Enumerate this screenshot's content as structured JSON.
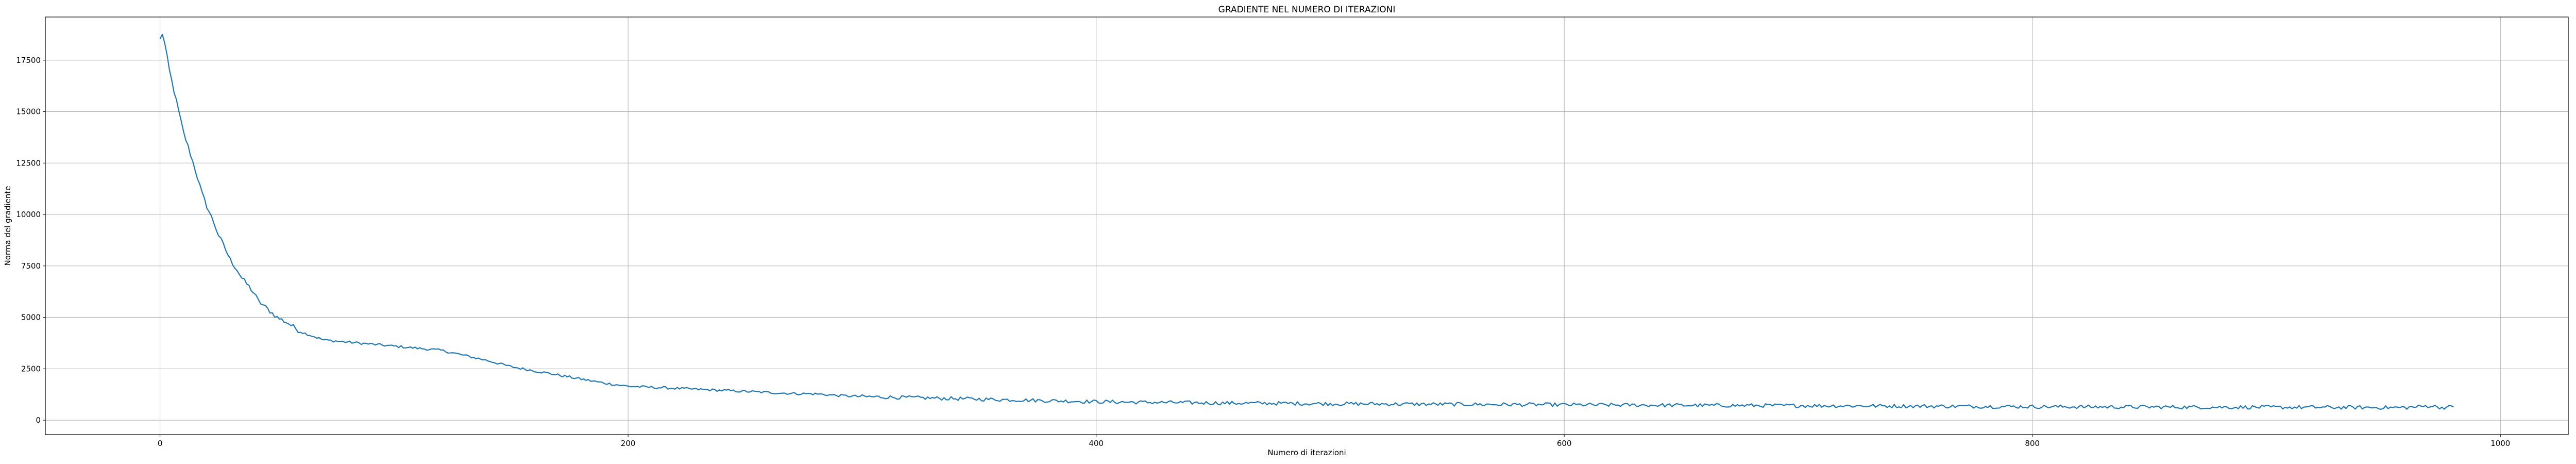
{
  "chart_data": {
    "type": "line",
    "title": "GRADIENTE NEL NUMERO DI ITERAZIONI",
    "xlabel": "Numero di iterazioni",
    "ylabel": "Norma del gradiente",
    "xlim": [
      -49,
      1029
    ],
    "ylim": [
      -700,
      19600
    ],
    "xticks": [
      0,
      200,
      400,
      600,
      800,
      1000
    ],
    "yticks": [
      0,
      2500,
      5000,
      7500,
      10000,
      12500,
      15000,
      17500
    ],
    "xtick_labels": [
      "0",
      "200",
      "400",
      "600",
      "800",
      "1000"
    ],
    "ytick_labels": [
      "0",
      "2500",
      "5000",
      "7500",
      "10000",
      "12500",
      "15000",
      "17500"
    ],
    "grid": true,
    "colors": {
      "line": "#1f77b4",
      "grid": "#b0b0b0",
      "axes": "#000000"
    },
    "series": [
      {
        "x": [
          0,
          1,
          2,
          4,
          6,
          8,
          10,
          12,
          15,
          18,
          20,
          23,
          25,
          28,
          30,
          33,
          35,
          38,
          40,
          42,
          45,
          48,
          50,
          55,
          60,
          65,
          70,
          75,
          80,
          85,
          90,
          95,
          100,
          110,
          120,
          130,
          140,
          150,
          160,
          170,
          180,
          190,
          200,
          210,
          220,
          230,
          240,
          250,
          260,
          270,
          280,
          290,
          300,
          320,
          340,
          360,
          380,
          400,
          420,
          440,
          460,
          480,
          500,
          520,
          540,
          560,
          580,
          600,
          620,
          640,
          660,
          680,
          700,
          720,
          740,
          760,
          780,
          800,
          820,
          840,
          860,
          880,
          900,
          920,
          940,
          960,
          970,
          975,
          980
        ],
        "y": [
          18500,
          18800,
          18300,
          17000,
          16000,
          15000,
          14000,
          13300,
          12200,
          11000,
          10400,
          9600,
          9000,
          8300,
          7800,
          7300,
          6900,
          6500,
          6200,
          5800,
          5500,
          5200,
          5000,
          4700,
          4300,
          4100,
          3900,
          3850,
          3800,
          3750,
          3700,
          3650,
          3600,
          3500,
          3400,
          3150,
          2900,
          2600,
          2400,
          2200,
          2000,
          1800,
          1650,
          1600,
          1550,
          1500,
          1450,
          1400,
          1350,
          1300,
          1280,
          1200,
          1150,
          1100,
          1050,
          1000,
          950,
          900,
          870,
          850,
          830,
          820,
          800,
          790,
          780,
          770,
          760,
          750,
          740,
          730,
          720,
          715,
          710,
          700,
          690,
          680,
          670,
          660,
          650,
          645,
          640,
          635,
          630,
          625,
          620,
          615,
          700,
          620,
          640
        ]
      }
    ]
  }
}
